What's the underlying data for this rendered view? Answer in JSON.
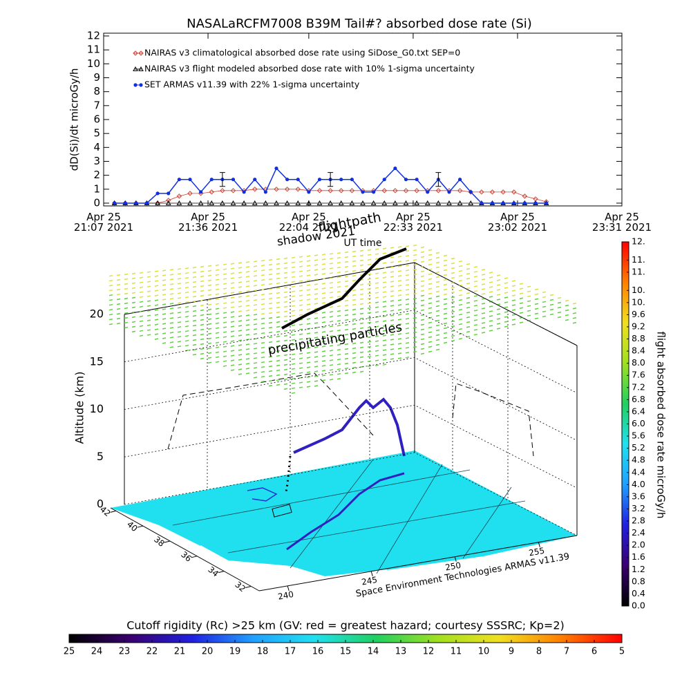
{
  "chart_data": [
    {
      "type": "line",
      "title": "NASALaRCFM7008  B39M Tail#? absorbed dose rate (Si)",
      "y_label": "dD(Si)/dt microGy/h",
      "x_label": "UT time",
      "legend": "upper left",
      "x": [
        "2021-04-25T21:10",
        "2021-04-25T21:13",
        "2021-04-25T21:16",
        "2021-04-25T21:19",
        "2021-04-25T21:22",
        "2021-04-25T21:25",
        "2021-04-25T21:28",
        "2021-04-25T21:31",
        "2021-04-25T21:34",
        "2021-04-25T21:37",
        "2021-04-25T21:40",
        "2021-04-25T21:43",
        "2021-04-25T21:46",
        "2021-04-25T21:49",
        "2021-04-25T21:52",
        "2021-04-25T21:55",
        "2021-04-25T21:58",
        "2021-04-25T22:01",
        "2021-04-25T22:04",
        "2021-04-25T22:07",
        "2021-04-25T22:10",
        "2021-04-25T22:13",
        "2021-04-25T22:16",
        "2021-04-25T22:19",
        "2021-04-25T22:22",
        "2021-04-25T22:25",
        "2021-04-25T22:28",
        "2021-04-25T22:31",
        "2021-04-25T22:34",
        "2021-04-25T22:37",
        "2021-04-25T22:40",
        "2021-04-25T22:43",
        "2021-04-25T22:46",
        "2021-04-25T22:49",
        "2021-04-25T22:52",
        "2021-04-25T22:55",
        "2021-04-25T22:58",
        "2021-04-25T23:01",
        "2021-04-25T23:04",
        "2021-04-25T23:07",
        "2021-04-25T23:10"
      ],
      "series": [
        {
          "name": "NAIRAS v3 climatological absorbed dose rate using SiDose_G0.txt SEP=0",
          "color": "#d04030",
          "marker": "diamond",
          "values": [
            0,
            0,
            0,
            0,
            0,
            0.2,
            0.5,
            0.7,
            0.7,
            0.8,
            0.9,
            0.9,
            0.9,
            1.0,
            1.0,
            1.0,
            1.0,
            1.0,
            0.9,
            0.9,
            0.9,
            0.9,
            0.9,
            0.9,
            0.9,
            0.9,
            0.9,
            0.9,
            0.9,
            0.9,
            0.9,
            0.9,
            0.9,
            0.8,
            0.8,
            0.8,
            0.8,
            0.8,
            0.5,
            0.3,
            0.1
          ]
        },
        {
          "name": "NAIRAS v3 flight modeled absorbed dose rate with 10% 1-sigma uncertainty",
          "color": "#000000",
          "marker": "triangle",
          "values": [
            0,
            0,
            0,
            0,
            0,
            0,
            0,
            0,
            0,
            0,
            0,
            0,
            0,
            0,
            0,
            0,
            0,
            0,
            0,
            0,
            0,
            0,
            0,
            0,
            0,
            0,
            0,
            0,
            0,
            0,
            0,
            0,
            0,
            0,
            0,
            0,
            0,
            0,
            0,
            0,
            0
          ]
        },
        {
          "name": "SET ARMAS v11.39 with 22% 1-sigma uncertainty",
          "color": "#1030e0",
          "marker": "circle",
          "values": [
            0,
            0,
            0,
            0,
            0.7,
            0.7,
            1.7,
            1.7,
            0.8,
            1.7,
            1.7,
            1.7,
            0.8,
            1.7,
            0.8,
            2.5,
            1.7,
            1.7,
            0.8,
            1.7,
            1.7,
            1.7,
            1.7,
            0.8,
            0.8,
            1.7,
            2.5,
            1.7,
            1.7,
            0.8,
            1.7,
            0.8,
            1.7,
            0.8,
            0,
            0,
            0,
            0,
            0,
            0,
            0
          ],
          "errors": [
            null,
            null,
            null,
            null,
            null,
            null,
            null,
            null,
            null,
            null,
            0.5,
            null,
            null,
            null,
            null,
            null,
            null,
            null,
            null,
            null,
            0.5,
            null,
            null,
            null,
            null,
            null,
            null,
            null,
            null,
            null,
            0.5,
            null,
            null,
            null,
            null,
            null,
            null,
            null,
            null,
            null,
            null
          ]
        }
      ],
      "xlim": [
        "2021-04-25T21:07",
        "2021-04-25T23:31"
      ],
      "xticks": [
        {
          "value": "2021-04-25T21:07",
          "label": "Apr 25\n21:07 2021"
        },
        {
          "value": "2021-04-25T21:36",
          "label": "Apr 25\n21:36 2021"
        },
        {
          "value": "2021-04-25T22:04",
          "label": "Apr 25\n22:04 2021"
        },
        {
          "value": "2021-04-25T22:33",
          "label": "Apr 25\n22:33 2021"
        },
        {
          "value": "2021-04-25T23:02",
          "label": "Apr 25\n23:02 2021"
        },
        {
          "value": "2021-04-25T23:31",
          "label": "Apr 25\n23:31 2021"
        }
      ],
      "ylim": [
        -0.2,
        12.2
      ],
      "yticks": [
        0,
        1,
        2,
        3,
        4,
        5,
        6,
        7,
        8,
        9,
        10,
        11,
        12
      ]
    },
    {
      "type": "surface3d",
      "z_label": "Altitude (km)",
      "annotations": [
        "shadow 2021",
        "flightpath",
        "precipitating particles"
      ],
      "credit": "Space Environment Technologies ARMAS v11.39",
      "zlim": [
        0,
        20
      ],
      "zticks": [
        0,
        5,
        10,
        15,
        20
      ],
      "ylim": [
        42.4,
        31.4
      ],
      "yticks": [
        42,
        40,
        38,
        36,
        34,
        32
      ],
      "xlim": [
        238.3,
        257.3
      ],
      "xticks": [
        240,
        245,
        250,
        255
      ]
    },
    {
      "type": "colorbar",
      "orientation": "vertical",
      "label": "flight absorbed dose rate microGy/h",
      "colors": [
        "#000000",
        "#3a0070",
        "#2020e0",
        "#20a0ff",
        "#20e0f0",
        "#20d060",
        "#a0e020",
        "#f0e020",
        "#ff8000",
        "#ff0000"
      ],
      "ylim": [
        0,
        12
      ],
      "yticks": [
        {
          "value": 0,
          "label": "0.0"
        },
        0.4,
        0.8,
        1.2,
        1.6,
        {
          "value": 2,
          "label": "2.0"
        },
        2.4,
        2.8,
        3.2,
        3.6,
        {
          "value": 4,
          "label": "4.0"
        },
        4.4,
        4.8,
        5.2,
        5.6,
        {
          "value": 6,
          "label": "6.0"
        },
        6.4,
        6.8,
        7.2,
        7.6,
        {
          "value": 8,
          "label": "8.0"
        },
        8.4,
        8.8,
        9.2,
        9.6,
        {
          "value": 10,
          "label": "10."
        },
        {
          "value": 10.4,
          "label": "10."
        },
        {
          "value": 11,
          "label": "11."
        },
        {
          "value": 11.4,
          "label": "11."
        },
        {
          "value": 12,
          "label": "12."
        }
      ]
    },
    {
      "type": "colorbar",
      "orientation": "horizontal",
      "label": "Cutoff rigidity (Rc) >25 km (GV: red = greatest hazard; courtesy SSSRC; Kp=2)",
      "colors": [
        "#000000",
        "#3a0070",
        "#2020e0",
        "#20a0ff",
        "#20e0f0",
        "#20d060",
        "#a0e020",
        "#f0e020",
        "#ff8000",
        "#ff0000"
      ],
      "xlim": [
        25,
        5
      ],
      "xticks": [
        25,
        24,
        23,
        22,
        21,
        20,
        19,
        18,
        17,
        16,
        15,
        14,
        13,
        12,
        11,
        10,
        9,
        8,
        7,
        6,
        5
      ]
    }
  ]
}
